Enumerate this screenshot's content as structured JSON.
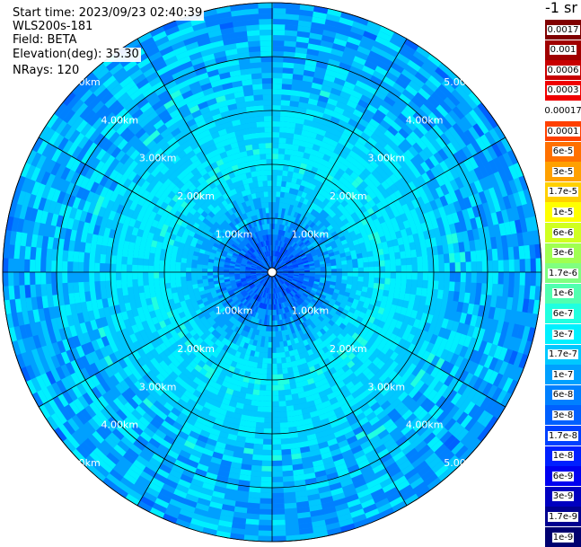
{
  "header": {
    "start_time": "Start time: 2023/09/23 02:40:39",
    "device": "WLS200s-181",
    "field": "Field: BETA",
    "elevation": "Elevation(deg): 35.30",
    "nrays": "NRays: 120"
  },
  "chart_data": {
    "type": "heatmap",
    "projection": "polar-ppi",
    "range_rings_km": [
      1,
      2,
      3,
      4,
      5
    ],
    "ring_label_values": [
      "1.00km",
      "2.00km",
      "3.00km",
      "4.00km",
      "5.00km"
    ],
    "max_range_km": 5.0,
    "spoke_angles_deg": [
      0,
      30,
      60,
      90,
      120,
      150,
      180,
      210,
      240,
      270,
      300,
      330
    ],
    "nrays": 120,
    "colorbar_unit": "-1 sr",
    "colorbar": [
      {
        "label": "0.0017",
        "color": "#800000"
      },
      {
        "label": "0.001",
        "color": "#a00000"
      },
      {
        "label": "0.0006",
        "color": "#c80000"
      },
      {
        "label": "0.0003",
        "color": "#f00000"
      },
      {
        "label": "0.00017",
        "color": "#ffffff"
      },
      {
        "label": "0.0001",
        "color": "#ff4000"
      },
      {
        "label": "6e-5",
        "color": "#ff7000"
      },
      {
        "label": "3e-5",
        "color": "#ffa000"
      },
      {
        "label": "1.7e-5",
        "color": "#ffd000"
      },
      {
        "label": "1e-5",
        "color": "#ffff00"
      },
      {
        "label": "6e-6",
        "color": "#d0ff20"
      },
      {
        "label": "3e-6",
        "color": "#a0ff50"
      },
      {
        "label": "1.7e-6",
        "color": "#80ff80"
      },
      {
        "label": "1e-6",
        "color": "#50ffb0"
      },
      {
        "label": "6e-7",
        "color": "#20ffe0"
      },
      {
        "label": "3e-7",
        "color": "#00f0ff"
      },
      {
        "label": "1.7e-7",
        "color": "#00c8ff"
      },
      {
        "label": "1e-7",
        "color": "#00a0ff"
      },
      {
        "label": "6e-8",
        "color": "#0080ff"
      },
      {
        "label": "3e-8",
        "color": "#0060ff"
      },
      {
        "label": "1.7e-8",
        "color": "#0040ff"
      },
      {
        "label": "1e-8",
        "color": "#0020ff"
      },
      {
        "label": "6e-9",
        "color": "#0000f0"
      },
      {
        "label": "3e-9",
        "color": "#0000c0"
      },
      {
        "label": "1.7e-9",
        "color": "#000090"
      },
      {
        "label": "1e-9",
        "color": "#000070"
      }
    ],
    "field_profile": [
      {
        "range_km": 0.5,
        "value": "3e-8"
      },
      {
        "range_km": 1.0,
        "value": "1e-7"
      },
      {
        "range_km": 2.0,
        "value": "3e-7"
      },
      {
        "range_km": 3.5,
        "value": "1.7e-7"
      },
      {
        "range_km": 5.0,
        "value": "1e-7"
      }
    ]
  }
}
